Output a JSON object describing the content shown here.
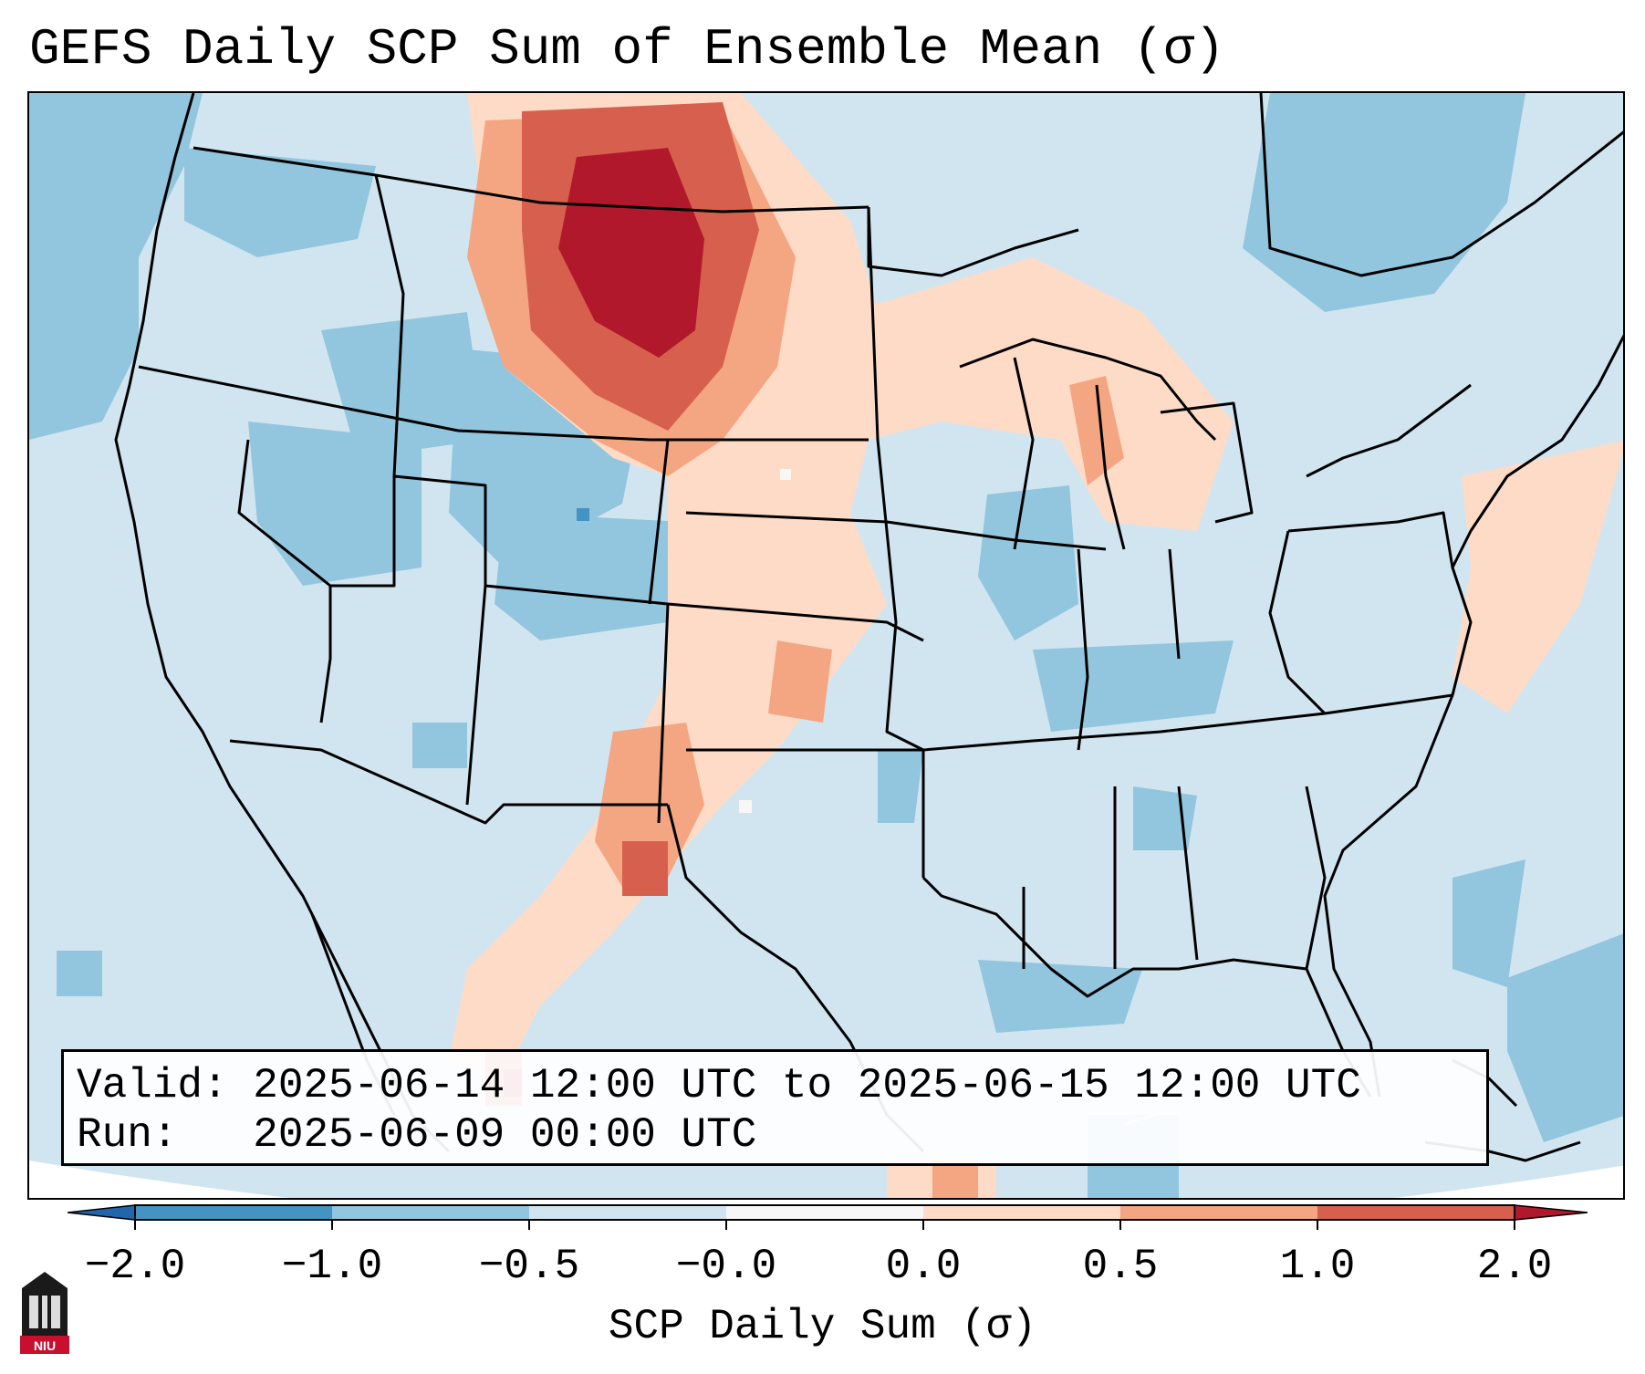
{
  "title": "GEFS Daily SCP Sum of Ensemble Mean (σ)",
  "info": {
    "valid_line": "Valid: 2025-06-14 12:00 UTC to 2025-06-15 12:00 UTC",
    "run_line": "Run:   2025-06-09 00:00 UTC"
  },
  "colorbar": {
    "label": "SCP Daily Sum (σ)",
    "ticks": [
      "−2.0",
      "−1.0",
      "−0.5",
      "−0.0",
      "0.0",
      "0.5",
      "1.0",
      "2.0"
    ],
    "colors": [
      "#4393c3",
      "#92c5de",
      "#d1e5f0",
      "#f7f7f7",
      "#fddbc7",
      "#f4a582",
      "#d6604d",
      "#b2182b"
    ],
    "extend": "both"
  },
  "map": {
    "background_color": "#d1e5f0",
    "regions": [
      {
        "name": "northern-plains-maximum",
        "value": 2.0,
        "color": "#b2182b"
      },
      {
        "name": "northern-plains-ring",
        "value": 1.0,
        "color": "#d6604d"
      },
      {
        "name": "northern-plains-outer",
        "value": 0.5,
        "color": "#f4a582"
      },
      {
        "name": "west-texas",
        "value": 0.5,
        "color": "#f4a582"
      },
      {
        "name": "upper-midwest",
        "value": 0.0,
        "color": "#fddbc7"
      },
      {
        "name": "colorado-plateau",
        "value": -1.0,
        "color": "#92c5de"
      },
      {
        "name": "pacific-northwest",
        "value": -1.0,
        "color": "#92c5de"
      }
    ]
  },
  "logo": {
    "text": "NIU"
  }
}
